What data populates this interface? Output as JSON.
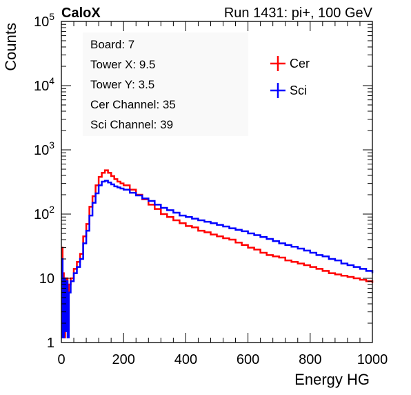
{
  "header": {
    "experiment": "CaloX",
    "run_info": "Run 1431: pi+, 100 GeV"
  },
  "info_box": [
    "Board: 7",
    "Tower X: 9.5",
    "Tower Y: 3.5",
    "Cer Channel: 35",
    "Sci Channel: 39"
  ],
  "chart_data": {
    "type": "line",
    "xlabel": "Energy HG",
    "ylabel": "Counts",
    "xlim": [
      0,
      1000
    ],
    "ylim": [
      1,
      100000
    ],
    "ylog": true,
    "x_ticks": [
      0,
      200,
      400,
      600,
      800,
      1000
    ],
    "y_tick_labels": [
      {
        "value": 1,
        "label": "1",
        "sup": ""
      },
      {
        "value": 10,
        "label": "10",
        "sup": ""
      },
      {
        "value": 100,
        "label": "10",
        "sup": "2"
      },
      {
        "value": 1000,
        "label": "10",
        "sup": "3"
      },
      {
        "value": 10000,
        "label": "10",
        "sup": "4"
      },
      {
        "value": 100000,
        "label": "10",
        "sup": "5"
      }
    ],
    "legend_position": "top-right",
    "grid": false,
    "series": [
      {
        "name": "Cer",
        "color": "#ff0000",
        "x": [
          0,
          4,
          8,
          12,
          16,
          20,
          24,
          30,
          40,
          50,
          60,
          70,
          80,
          90,
          100,
          110,
          120,
          130,
          140,
          150,
          160,
          170,
          180,
          190,
          200,
          220,
          240,
          260,
          280,
          300,
          320,
          340,
          360,
          380,
          400,
          420,
          440,
          460,
          480,
          500,
          520,
          540,
          560,
          580,
          600,
          620,
          640,
          660,
          680,
          700,
          720,
          740,
          760,
          780,
          800,
          820,
          840,
          860,
          880,
          900,
          920,
          940,
          960,
          980,
          1000
        ],
        "y": [
          30,
          12,
          1.2,
          3,
          10,
          1.5,
          8,
          10,
          14,
          18,
          24,
          45,
          70,
          130,
          190,
          280,
          380,
          440,
          480,
          440,
          390,
          350,
          320,
          300,
          280,
          240,
          200,
          170,
          140,
          120,
          100,
          90,
          80,
          72,
          65,
          62,
          55,
          52,
          48,
          45,
          42,
          40,
          36,
          33,
          30,
          28,
          25,
          23,
          22,
          21,
          19,
          18,
          17,
          16,
          15,
          14,
          13,
          12,
          11.5,
          11,
          10.5,
          10,
          9.5,
          9,
          8.5
        ]
      },
      {
        "name": "Sci",
        "color": "#0000ff",
        "x": [
          0,
          4,
          8,
          12,
          16,
          20,
          24,
          30,
          40,
          50,
          60,
          70,
          80,
          90,
          100,
          110,
          120,
          130,
          140,
          150,
          160,
          170,
          180,
          190,
          200,
          220,
          240,
          260,
          280,
          300,
          320,
          340,
          360,
          380,
          400,
          420,
          440,
          460,
          480,
          500,
          520,
          540,
          560,
          580,
          600,
          620,
          640,
          660,
          680,
          700,
          720,
          740,
          760,
          780,
          800,
          820,
          840,
          860,
          880,
          900,
          920,
          940,
          960,
          980,
          1000
        ],
        "y": [
          20,
          1.2,
          10,
          1.5,
          9,
          1.2,
          6,
          9,
          12,
          15,
          20,
          35,
          55,
          95,
          150,
          210,
          280,
          320,
          330,
          310,
          290,
          270,
          260,
          250,
          240,
          215,
          195,
          175,
          160,
          140,
          125,
          115,
          105,
          95,
          90,
          85,
          80,
          76,
          72,
          68,
          64,
          60,
          57,
          54,
          50,
          47,
          44,
          41,
          38,
          35,
          33,
          31,
          29,
          27,
          25,
          23,
          22,
          20,
          19,
          17,
          16,
          15,
          14,
          13,
          12
        ]
      }
    ]
  }
}
